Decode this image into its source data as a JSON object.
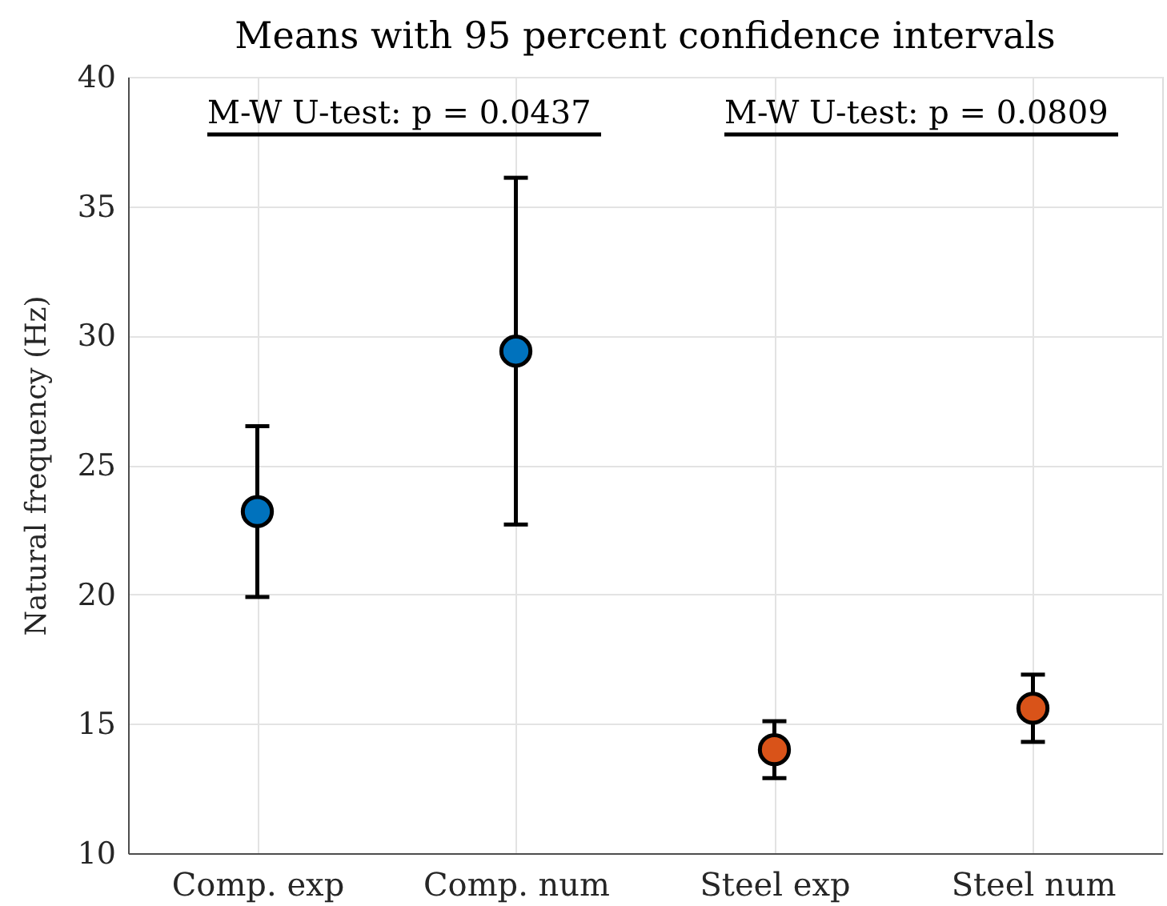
{
  "chart_data": {
    "type": "scatter",
    "title": "Means with 95 percent confidence intervals",
    "ylabel": "Natural frequency (Hz)",
    "categories": [
      "Comp. exp",
      "Comp. num",
      "Steel exp",
      "Steel num"
    ],
    "values": [
      23.2,
      29.4,
      14.0,
      15.6
    ],
    "errors": [
      3.3,
      6.7,
      1.1,
      1.3
    ],
    "colors": [
      "#0072bd",
      "#0072bd",
      "#d95319",
      "#d95319"
    ],
    "ylim": [
      10,
      40
    ],
    "yticks": [
      10,
      15,
      20,
      25,
      30,
      35,
      40
    ],
    "grid": true,
    "marker": "circle",
    "annotations": [
      "M-W U-test: p = 0.0437",
      "M-W U-test: p = 0.0809"
    ]
  }
}
